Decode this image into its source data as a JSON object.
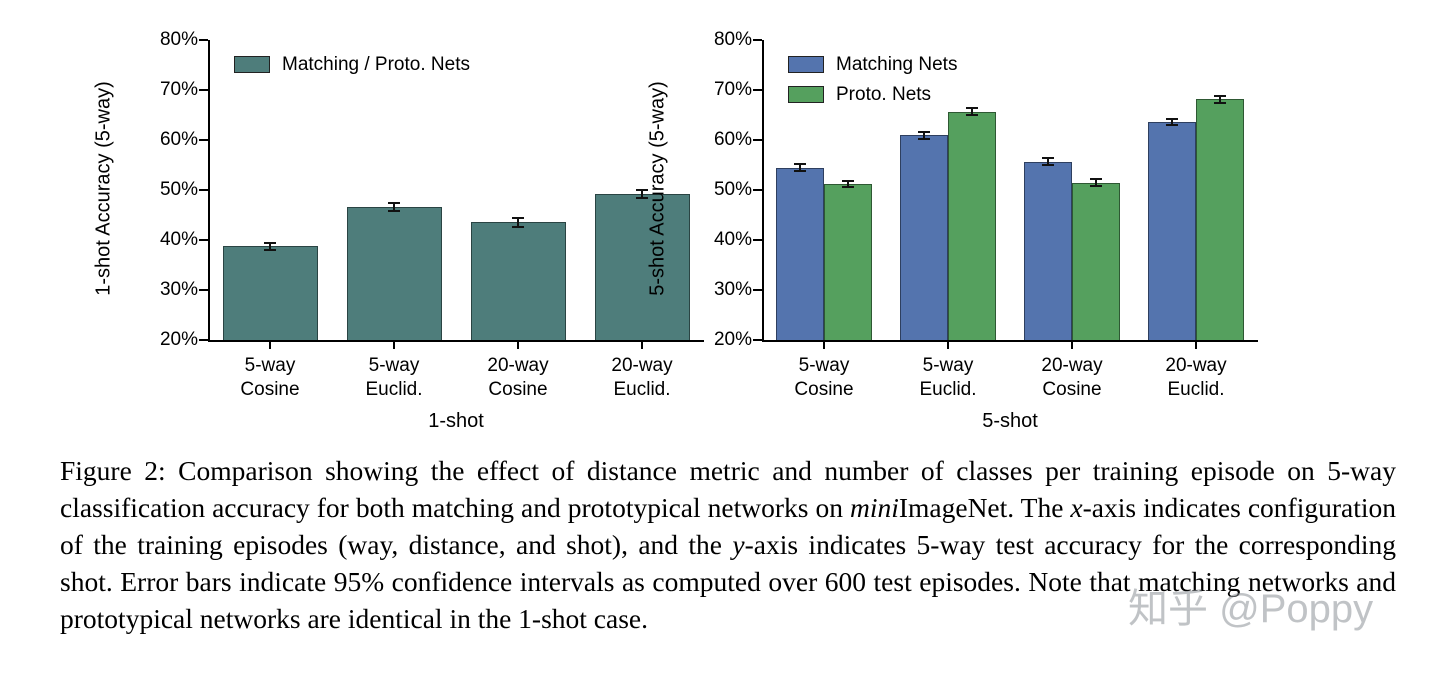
{
  "chart_data": [
    {
      "type": "bar",
      "title": "",
      "xlabel": "1-shot",
      "ylabel": "1-shot Accuracy (5-way)",
      "ylim": [
        20,
        80
      ],
      "yticks": [
        80,
        70,
        60,
        50,
        40,
        30,
        20
      ],
      "ytick_suffix": "%",
      "grid": false,
      "legend_position": "upper-left",
      "categories": [
        [
          "5-way",
          "Cosine"
        ],
        [
          "5-way",
          "Euclid."
        ],
        [
          "20-way",
          "Cosine"
        ],
        [
          "20-way",
          "Euclid."
        ]
      ],
      "legend": [
        {
          "label": "Matching / Proto. Nets",
          "color": "#4e7d7b"
        }
      ],
      "series": [
        {
          "name": "Matching / Proto. Nets",
          "color": "#4e7d7b",
          "values": [
            38.8,
            46.6,
            43.6,
            49.2
          ],
          "errors": [
            0.7,
            0.8,
            0.9,
            0.8
          ]
        }
      ]
    },
    {
      "type": "bar",
      "title": "",
      "xlabel": "5-shot",
      "ylabel": "5-shot Accuracy (5-way)",
      "ylim": [
        20,
        80
      ],
      "yticks": [
        80,
        70,
        60,
        50,
        40,
        30,
        20
      ],
      "ytick_suffix": "%",
      "grid": false,
      "legend_position": "upper-left",
      "categories": [
        [
          "5-way",
          "Cosine"
        ],
        [
          "5-way",
          "Euclid."
        ],
        [
          "20-way",
          "Cosine"
        ],
        [
          "20-way",
          "Euclid."
        ]
      ],
      "legend": [
        {
          "label": "Matching Nets",
          "color": "#5474ae"
        },
        {
          "label": "Proto. Nets",
          "color": "#55a05e"
        }
      ],
      "series": [
        {
          "name": "Matching Nets",
          "color": "#5474ae",
          "values": [
            54.5,
            61.0,
            55.7,
            63.6
          ],
          "errors": [
            0.7,
            0.7,
            0.7,
            0.6
          ]
        },
        {
          "name": "Proto. Nets",
          "color": "#55a05e",
          "values": [
            51.2,
            65.7,
            51.5,
            68.2
          ],
          "errors": [
            0.6,
            0.7,
            0.7,
            0.7
          ]
        }
      ]
    }
  ],
  "caption": {
    "segments": [
      {
        "text": "Figure 2: Comparison showing the effect of distance metric and number of classes per training episode on 5-way classification accuracy for both matching and prototypical networks on ",
        "style": "normal"
      },
      {
        "text": "mini",
        "style": "italic"
      },
      {
        "text": "ImageNet. The ",
        "style": "normal"
      },
      {
        "text": "x",
        "style": "italic"
      },
      {
        "text": "-axis indicates configuration of the training episodes (way, distance, and shot), and the ",
        "style": "normal"
      },
      {
        "text": "y",
        "style": "italic"
      },
      {
        "text": "-axis indicates 5-way test accuracy for the corresponding shot. Error bars indicate 95% confidence intervals as computed over 600 test episodes. Note that matching networks and prototypical networks are identical in the 1-shot case.",
        "style": "normal"
      }
    ]
  },
  "watermark": {
    "text": "知乎 @Poppy"
  }
}
